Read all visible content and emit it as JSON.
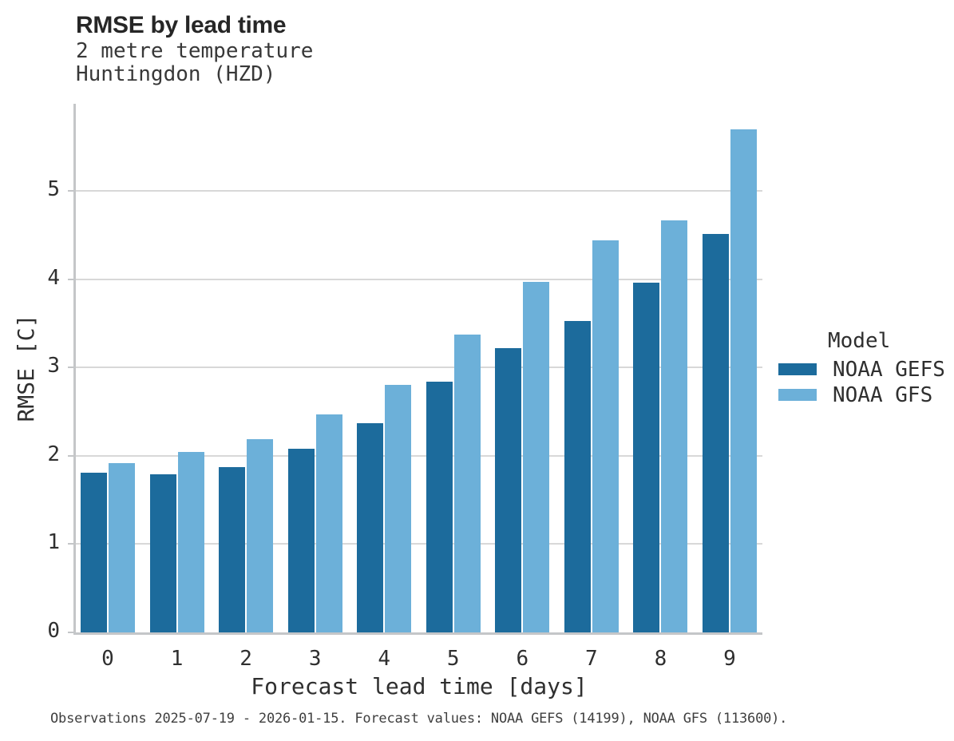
{
  "header": {
    "title": "RMSE by lead time",
    "subtitle_line1": "2 metre temperature",
    "subtitle_line2": "Huntingdon (HZD)"
  },
  "chart_data": {
    "type": "bar",
    "title": "RMSE by lead time",
    "subtitle": "2 metre temperature Huntingdon (HZD)",
    "categories": [
      "0",
      "1",
      "2",
      "3",
      "4",
      "5",
      "6",
      "7",
      "8",
      "9"
    ],
    "series": [
      {
        "name": "NOAA GEFS",
        "color": "#1c6b9c",
        "values": [
          1.81,
          1.79,
          1.87,
          2.08,
          2.37,
          2.84,
          3.22,
          3.53,
          3.96,
          4.51
        ]
      },
      {
        "name": "NOAA GFS",
        "color": "#6cb0d9",
        "values": [
          1.92,
          2.04,
          2.19,
          2.47,
          2.8,
          3.37,
          3.97,
          4.44,
          4.67,
          5.7
        ]
      }
    ],
    "xlabel": "Forecast lead time [days]",
    "ylabel": "RMSE [C]",
    "ylim": [
      0,
      5.99
    ],
    "yticks": [
      0,
      1,
      2,
      3,
      4,
      5
    ],
    "grid": "horizontal-only",
    "legend": {
      "title": "Model",
      "position": "right"
    }
  },
  "footer": {
    "text": "Observations 2025-07-19 - 2026-01-15. Forecast values: NOAA GEFS (14199), NOAA GFS (113600)."
  },
  "style_colors": {
    "gefs_bar": "#1c6b9c",
    "gfs_bar": "#6cb0d9",
    "gridline": "#d8d8d8",
    "axis_line": "#c4c6c8",
    "text": "#2f2f2f"
  }
}
